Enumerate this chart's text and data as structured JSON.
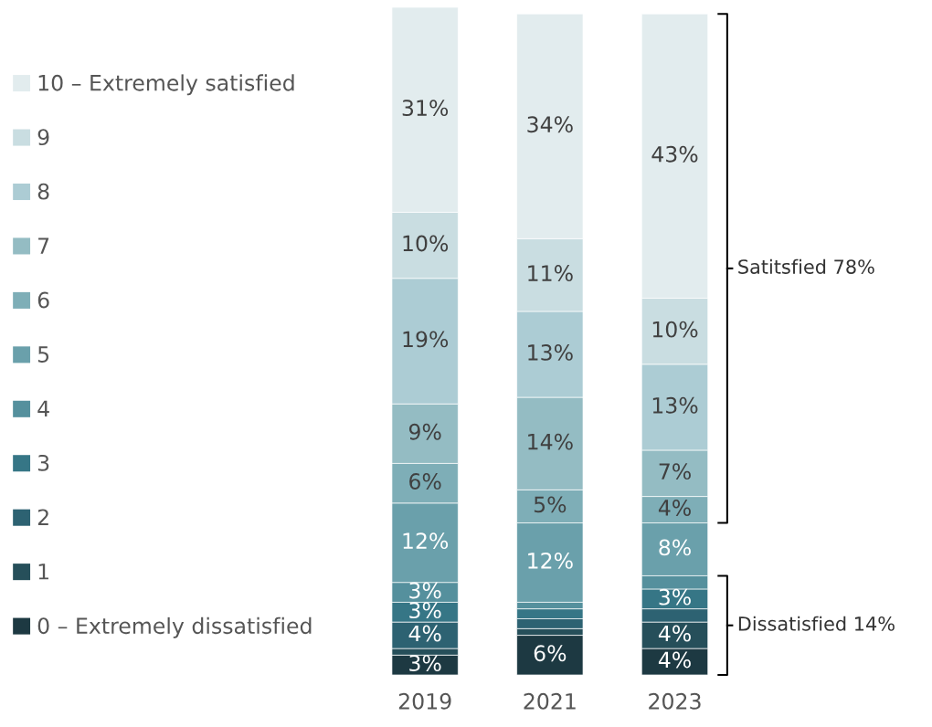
{
  "chart_data": {
    "type": "bar",
    "stacked": true,
    "categories": [
      "2019",
      "2021",
      "2023"
    ],
    "series": [
      {
        "name": "0 – Extremely dissatisfied",
        "color": "#1d3942",
        "values": [
          3,
          6,
          4
        ],
        "value_labels": [
          "3%",
          "6%",
          "4%"
        ]
      },
      {
        "name": "1",
        "color": "#264f5a",
        "values": [
          1,
          1,
          4
        ],
        "value_labels": [
          null,
          null,
          "4%"
        ]
      },
      {
        "name": "2",
        "color": "#2d6272",
        "values": [
          4,
          1.5,
          2
        ],
        "value_labels": [
          "4%",
          null,
          null
        ]
      },
      {
        "name": "3",
        "color": "#367686",
        "values": [
          3,
          1.5,
          3
        ],
        "value_labels": [
          "3%",
          null,
          "3%"
        ]
      },
      {
        "name": "4",
        "color": "#55909d",
        "values": [
          3,
          1,
          2
        ],
        "value_labels": [
          "3%",
          null,
          null
        ]
      },
      {
        "name": "5",
        "color": "#6aa0ab",
        "values": [
          12,
          12,
          8
        ],
        "value_labels": [
          "12%",
          "12%",
          "8%"
        ]
      },
      {
        "name": "6",
        "color": "#7eaeb7",
        "values": [
          6,
          5,
          4
        ],
        "value_labels": [
          "6%",
          "5%",
          "4%"
        ]
      },
      {
        "name": "7",
        "color": "#94bcc3",
        "values": [
          9,
          14,
          7
        ],
        "value_labels": [
          "9%",
          "14%",
          "7%"
        ]
      },
      {
        "name": "8",
        "color": "#acccd4",
        "values": [
          19,
          13,
          13
        ],
        "value_labels": [
          "19%",
          "13%",
          "13%"
        ]
      },
      {
        "name": "9",
        "color": "#c9dde1",
        "values": [
          10,
          11,
          10
        ],
        "value_labels": [
          "10%",
          "11%",
          "10%"
        ]
      },
      {
        "name": "10 – Extremely satisfied",
        "color": "#e2ecee",
        "values": [
          31,
          34,
          43
        ],
        "value_labels": [
          "31%",
          "34%",
          "43%"
        ]
      }
    ],
    "annotations": [
      "Satitsfied 78%",
      "Dissatisfied 14%"
    ],
    "legend": "left"
  }
}
